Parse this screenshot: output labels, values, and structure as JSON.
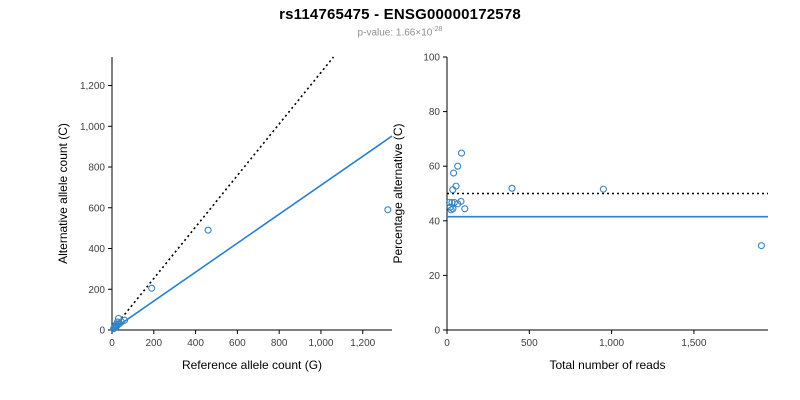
{
  "header": {
    "title": "rs114765475 - ENSG00000172578",
    "subtitle_prefix": "p-value: 1.66×10",
    "subtitle_exponent": "-28"
  },
  "colors": {
    "points": "#3584c4",
    "fit_line": "#2b7fd4",
    "reference_line": "#000000"
  },
  "chart_data": [
    {
      "type": "scatter",
      "name": "allele-count-scatter",
      "xlabel": "Reference allele count (G)",
      "ylabel": "Alternative allele count (C)",
      "xlim": [
        0,
        1340
      ],
      "ylim": [
        0,
        1340
      ],
      "xticks": [
        0,
        200,
        400,
        600,
        800,
        1000,
        1200
      ],
      "xtick_labels": [
        "0",
        "200",
        "400",
        "600",
        "800",
        "1,000",
        "1,200"
      ],
      "yticks": [
        0,
        200,
        400,
        600,
        800,
        1000,
        1200
      ],
      "ytick_labels": [
        "0",
        "200",
        "400",
        "600",
        "800",
        "1,000",
        "1,200"
      ],
      "points": [
        [
          8,
          7
        ],
        [
          11,
          9
        ],
        [
          14,
          11
        ],
        [
          16,
          14
        ],
        [
          17,
          18
        ],
        [
          17,
          23
        ],
        [
          20,
          16
        ],
        [
          24,
          21
        ],
        [
          26,
          29
        ],
        [
          26,
          39
        ],
        [
          31,
          57
        ],
        [
          35,
          30
        ],
        [
          45,
          40
        ],
        [
          60,
          48
        ],
        [
          190,
          205
        ],
        [
          460,
          490
        ],
        [
          1320,
          590
        ]
      ],
      "lines": [
        {
          "name": "identity-dotted-line",
          "style": "dotted",
          "color": "#000000",
          "x1": 0,
          "y1": 0,
          "x2": 1060,
          "y2": 1340
        },
        {
          "name": "regression-fit-line",
          "style": "solid",
          "color": "#2b7fd4",
          "x1": 0,
          "y1": 0,
          "x2": 1340,
          "y2": 952
        }
      ],
      "legend": "none",
      "grid": false
    },
    {
      "type": "scatter",
      "name": "percentage-alternative-scatter",
      "xlabel": "Total number of reads",
      "ylabel": "Percentage alternative (C)",
      "xlim": [
        0,
        1950
      ],
      "ylim": [
        0,
        100
      ],
      "xticks": [
        0,
        500,
        1000,
        1500
      ],
      "xtick_labels": [
        "0",
        "500",
        "1,000",
        "1,500"
      ],
      "yticks": [
        0,
        20,
        40,
        60,
        80,
        100
      ],
      "ytick_labels": [
        "0",
        "20",
        "40",
        "60",
        "80",
        "100"
      ],
      "points": [
        [
          15,
          46.7
        ],
        [
          20,
          45
        ],
        [
          25,
          44
        ],
        [
          30,
          46.7
        ],
        [
          35,
          51.4
        ],
        [
          40,
          57.5
        ],
        [
          36,
          44.4
        ],
        [
          45,
          46.7
        ],
        [
          55,
          52.7
        ],
        [
          65,
          60
        ],
        [
          88,
          64.8
        ],
        [
          65,
          46.2
        ],
        [
          85,
          47.1
        ],
        [
          108,
          44.4
        ],
        [
          395,
          51.9
        ],
        [
          950,
          51.6
        ],
        [
          1910,
          30.9
        ]
      ],
      "lines": [
        {
          "name": "fifty-percent-dotted-line",
          "style": "dotted",
          "color": "#000000",
          "x1": 0,
          "y1": 50,
          "x2": 1950,
          "y2": 50
        },
        {
          "name": "mean-percentage-line",
          "style": "solid",
          "color": "#2b7fd4",
          "x1": 0,
          "y1": 41.5,
          "x2": 1950,
          "y2": 41.5
        }
      ],
      "legend": "none",
      "grid": false
    }
  ]
}
